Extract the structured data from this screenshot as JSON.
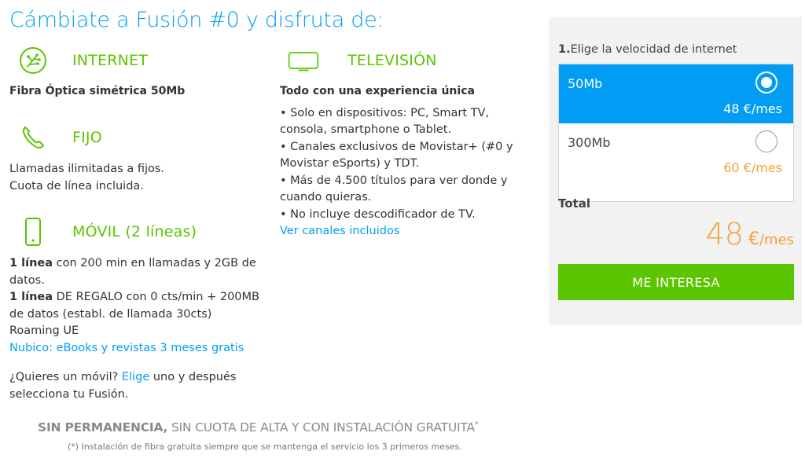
{
  "title": "Cámbiate a Fusión #0 y disfruta de:",
  "internet": {
    "label": "INTERNET",
    "icon": "fiber-icon",
    "description": "Fibra Óptica simétrica 50Mb"
  },
  "fijo": {
    "label": "FIJO",
    "icon": "phone-icon",
    "line1": "Llamadas ilimitadas a fijos.",
    "line2": "Cuota de línea incluida."
  },
  "movil": {
    "label": "MÓVIL (2 líneas)",
    "icon": "mobile-icon",
    "line1_bold": "1 línea",
    "line1_rest": " con 200 min en llamadas y 2GB de datos.",
    "line2_bold": "1 línea",
    "line2_rest": " DE REGALO con 0 cts/min + 200MB de datos (establ. de llamada 30cts)",
    "roaming": "Roaming UE",
    "nubico_link": "Nubico: eBooks y revistas 3 meses gratis",
    "question_pre": "¿Quieres un móvil? ",
    "question_link": "Elige",
    "question_post": " uno y después selecciona tu Fusión."
  },
  "tv": {
    "label": "TELEVISIÓN",
    "icon": "tv-icon",
    "subtitle": "Todo con una experiencia única",
    "bullets": [
      "• Solo en dispositivos: PC, Smart TV, consola, smartphone o Tablet.",
      "• Canales exclusivos de Movistar+ (#0 y Movistar eSports) y TDT.",
      "• Más de 4.500 títulos para ver donde y cuando quieras.",
      "• No incluye descodificador de TV."
    ],
    "link": "Ver canales incluidos"
  },
  "footer": {
    "bold": "SIN PERMANENCIA,",
    "rest": " SIN CUOTA DE ALTA Y CON INSTALACIÓN GRATUITA",
    "asterisk": "*",
    "note": "(*) Instalación de fibra gratuita siempre que se mantenga el servicio los 3 primeros meses."
  },
  "panel": {
    "step_num": "1.",
    "step_text": "Elige la velocidad de internet",
    "options": [
      {
        "name": "50Mb",
        "price": "48 €/mes",
        "selected": true
      },
      {
        "name": "300Mb",
        "price": "60 €/mes",
        "selected": false
      }
    ],
    "total_label": "Total",
    "total_amount": "48",
    "total_currency": "€",
    "total_period": "/mes",
    "cta_label": "ME INTERESA"
  },
  "colors": {
    "brand_blue": "#019df4",
    "brand_green": "#5bc500",
    "price_orange": "#f0a33a"
  }
}
